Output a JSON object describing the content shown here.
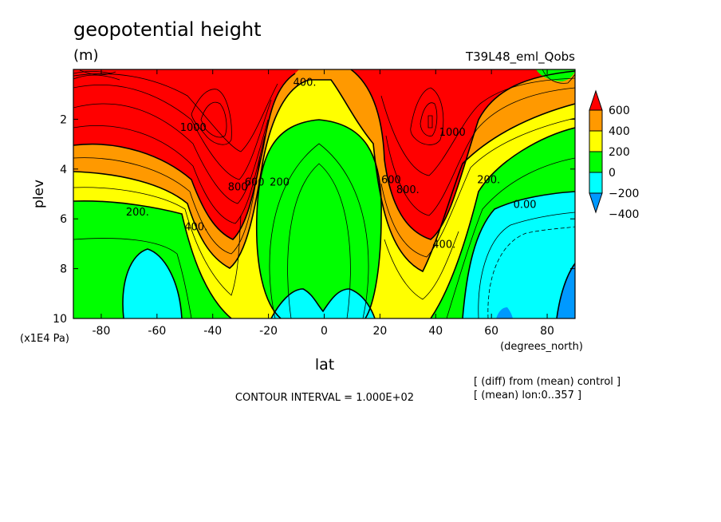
{
  "chart_data": {
    "type": "contour",
    "title": "geopotential height",
    "units": "(m)",
    "dataset": "T39L48_eml_Qobs",
    "xlabel": "lat",
    "xunits": "(degrees_north)",
    "ylabel": "plev",
    "yunits": "(x1E4 Pa)",
    "xlim": [
      -90,
      90
    ],
    "ylim": [
      10,
      0
    ],
    "xticks": [
      "-80",
      "-60",
      "-40",
      "-20",
      "0",
      "20",
      "40",
      "60",
      "80"
    ],
    "xtick_values": [
      -80,
      -60,
      -40,
      -20,
      0,
      20,
      40,
      60,
      80
    ],
    "yticks": [
      "2",
      "4",
      "6",
      "8",
      "10"
    ],
    "ytick_values": [
      2,
      4,
      6,
      8,
      10
    ],
    "contour_interval": "CONTOUR INTERVAL = 1.000E+02",
    "notes": [
      "[ (diff) from (mean) control ]",
      "[ (mean) lon:0..357 ]"
    ],
    "colorbar": {
      "labels": [
        "600",
        "400",
        "200",
        "0",
        "−200",
        "−400"
      ],
      "bins": [
        {
          "range": "> 600",
          "color": "#ff0000"
        },
        {
          "range": "400 to 600",
          "color": "#ff9900"
        },
        {
          "range": "200 to 400",
          "color": "#ffff00"
        },
        {
          "range": "0 to 200",
          "color": "#00ff00"
        },
        {
          "range": "-200 to 0",
          "color": "#00ffff"
        },
        {
          "range": "< -200",
          "color": "#0099ff"
        }
      ]
    },
    "contour_labels": [
      {
        "text": "400.",
        "lat": -7,
        "plev": 0.5
      },
      {
        "text": "1000",
        "lat": -47,
        "plev": 2.3
      },
      {
        "text": "800",
        "lat": -31,
        "plev": 4.7
      },
      {
        "text": "600",
        "lat": -25,
        "plev": 4.5
      },
      {
        "text": "200",
        "lat": -16,
        "plev": 4.5
      },
      {
        "text": "200.",
        "lat": -67,
        "plev": 5.7
      },
      {
        "text": "400.",
        "lat": -46,
        "plev": 6.3
      },
      {
        "text": "600",
        "lat": 24,
        "plev": 4.4
      },
      {
        "text": "800.",
        "lat": 30,
        "plev": 4.8
      },
      {
        "text": "1000",
        "lat": 46,
        "plev": 2.5
      },
      {
        "text": "400.",
        "lat": 43,
        "plev": 7.0
      },
      {
        "text": "200.",
        "lat": 59,
        "plev": 4.4
      },
      {
        "text": "0.00",
        "lat": 72,
        "plev": 5.4
      }
    ],
    "features": [
      {
        "value": "> 1000",
        "lat": -38,
        "plev": 2.3
      },
      {
        "value": "> 1000",
        "lat": 38,
        "plev": 2.3
      },
      {
        "value": "< 0",
        "lat": -62,
        "plev": 8.8
      },
      {
        "value": "< 0",
        "lat": 0,
        "plev": 9.7
      },
      {
        "value": "< -200",
        "lat": 85,
        "plev": 9.5
      }
    ]
  },
  "colors": {
    "band_red": "#ff0000",
    "band_orange": "#ff9900",
    "band_yellow": "#ffff00",
    "band_green": "#00ff00",
    "band_cyan": "#00ffff",
    "band_blue": "#0099ff"
  }
}
